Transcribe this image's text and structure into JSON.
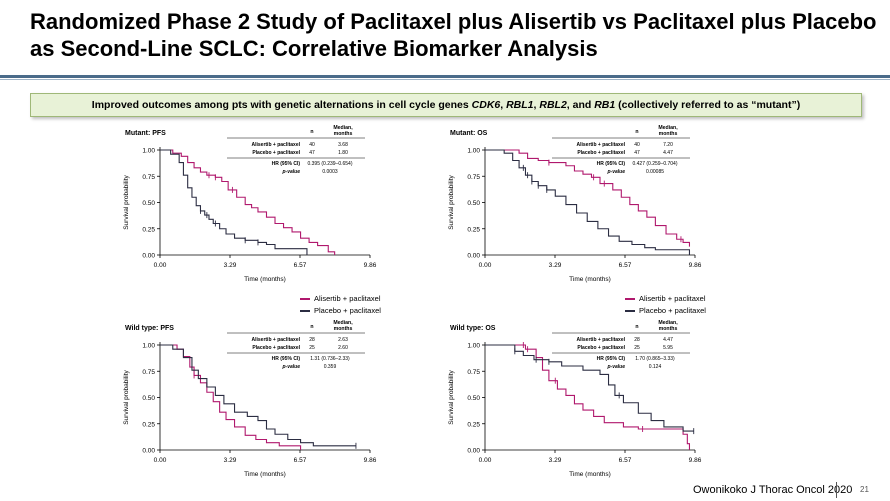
{
  "slide": {
    "title": "Randomized Phase 2 Study of Paclitaxel plus Alisertib vs Paclitaxel plus Placebo as Second-Line SCLC: Correlative Biomarker Analysis",
    "banner_parts": [
      "Improved  outcomes  among  pts  with  genetic  alternations  in  cell  cycle  genes ",
      "CDK6",
      ", ",
      "RBL1",
      ", ",
      "RBL2",
      ",  and ",
      "RB1",
      " (collectively  referred  to as “mutant”)"
    ],
    "citation": "Owonikoko J Thorac Oncol 2020",
    "page_number": "21",
    "colors": {
      "alisertib": "#b0186d",
      "placebo": "#2b2d42",
      "accent_rule": "#4a6b8a",
      "banner_bg": "#e8f2d7"
    }
  },
  "legends": [
    {
      "items": [
        {
          "label": "Alisertib + paclitaxel",
          "color": "#b0186d"
        },
        {
          "label": "Placebo + paclitaxel",
          "color": "#2b2d42"
        }
      ]
    },
    {
      "items": [
        {
          "label": "Alisertib + paclitaxel",
          "color": "#b0186d"
        },
        {
          "label": "Placebo + paclitaxel",
          "color": "#2b2d42"
        }
      ]
    }
  ],
  "chart_data": [
    {
      "type": "line",
      "title": "Mutant: PFS",
      "xlabel": "Time (months)",
      "ylabel": "Survival probability",
      "xlim": [
        0,
        9.86
      ],
      "ylim": [
        0,
        1.0
      ],
      "x_ticks": [
        "0.00",
        "3.29",
        "6.57",
        "9.86"
      ],
      "y_ticks": [
        "0.00",
        "0.25",
        "0.50",
        "0.75",
        "1.00"
      ],
      "table": {
        "headers": [
          "",
          "n",
          "Median, months"
        ],
        "rows": [
          [
            "Alisertib + paclitaxel",
            "40",
            "3.68"
          ],
          [
            "Placebo + paclitaxel",
            "47",
            "1.80"
          ]
        ],
        "stats": [
          [
            "HR (95% CI)",
            "0.395 (0.239–0.654)"
          ],
          [
            "p-value",
            "0.0003"
          ]
        ]
      },
      "series": [
        {
          "name": "Alisertib + paclitaxel",
          "color": "#b0186d",
          "x": [
            0,
            0.6,
            1.0,
            1.3,
            1.6,
            1.9,
            2.2,
            2.6,
            2.9,
            3.2,
            3.6,
            4.0,
            4.3,
            4.6,
            5.0,
            5.4,
            5.8,
            6.2,
            6.6,
            7.0,
            7.4,
            7.9,
            8.2
          ],
          "y": [
            1.0,
            0.97,
            0.94,
            0.88,
            0.83,
            0.79,
            0.76,
            0.74,
            0.7,
            0.62,
            0.55,
            0.48,
            0.45,
            0.41,
            0.36,
            0.3,
            0.26,
            0.22,
            0.16,
            0.12,
            0.09,
            0.03,
            0.0
          ],
          "censor_x": [
            2.3,
            2.6,
            3.4
          ]
        },
        {
          "name": "Placebo + paclitaxel",
          "color": "#2b2d42",
          "x": [
            0,
            0.5,
            0.9,
            1.1,
            1.3,
            1.5,
            1.7,
            1.9,
            2.1,
            2.3,
            2.5,
            2.8,
            3.1,
            3.5,
            4.0,
            4.6,
            5.0,
            5.4,
            6.6,
            6.9
          ],
          "y": [
            1.0,
            0.96,
            0.88,
            0.76,
            0.64,
            0.55,
            0.47,
            0.42,
            0.38,
            0.34,
            0.3,
            0.25,
            0.2,
            0.16,
            0.14,
            0.12,
            0.1,
            0.06,
            0.06,
            0.0
          ],
          "censor_x": [
            1.9,
            2.2,
            2.6,
            4.0,
            4.6
          ]
        }
      ]
    },
    {
      "type": "line",
      "title": "Mutant: OS",
      "xlabel": "Time (months)",
      "ylabel": "Survival probability",
      "xlim": [
        0,
        9.86
      ],
      "ylim": [
        0,
        1.0
      ],
      "x_ticks": [
        "0.00",
        "3.29",
        "6.57",
        "9.86"
      ],
      "y_ticks": [
        "0.00",
        "0.25",
        "0.50",
        "0.75",
        "1.00"
      ],
      "table": {
        "headers": [
          "",
          "n",
          "Median, months"
        ],
        "rows": [
          [
            "Alisertib + paclitaxel",
            "40",
            "7.20"
          ],
          [
            "Placebo + paclitaxel",
            "47",
            "4.47"
          ]
        ],
        "stats": [
          [
            "HR (95% CI)",
            "0.427 (0.259–0.704)"
          ],
          [
            "p-value",
            "0.00085"
          ]
        ]
      },
      "series": [
        {
          "name": "Alisertib + paclitaxel",
          "color": "#b0186d",
          "x": [
            0,
            1.6,
            2.0,
            2.5,
            3.0,
            3.8,
            4.2,
            4.6,
            5.0,
            5.4,
            6.0,
            6.4,
            6.8,
            7.2,
            7.6,
            8.0,
            8.5,
            9.0,
            9.3,
            9.6
          ],
          "y": [
            1.0,
            0.97,
            0.92,
            0.9,
            0.88,
            0.85,
            0.8,
            0.77,
            0.74,
            0.68,
            0.62,
            0.55,
            0.48,
            0.42,
            0.36,
            0.28,
            0.2,
            0.15,
            0.12,
            0.08
          ],
          "censor_x": [
            3.0,
            5.1,
            5.6,
            9.2
          ]
        },
        {
          "name": "Placebo + paclitaxel",
          "color": "#2b2d42",
          "x": [
            0,
            0.9,
            1.3,
            1.6,
            1.9,
            2.2,
            2.5,
            2.9,
            3.3,
            3.8,
            4.3,
            4.8,
            5.3,
            5.8,
            6.3,
            6.9,
            7.5,
            8.0,
            9.3,
            9.6
          ],
          "y": [
            1.0,
            0.97,
            0.9,
            0.83,
            0.76,
            0.7,
            0.66,
            0.62,
            0.56,
            0.48,
            0.4,
            0.32,
            0.25,
            0.18,
            0.13,
            0.1,
            0.07,
            0.05,
            0.05,
            0.0
          ],
          "censor_x": [
            1.8,
            2.0,
            2.2,
            2.5,
            2.9
          ]
        }
      ]
    },
    {
      "type": "line",
      "title": "Wild type: PFS",
      "xlabel": "Time (months)",
      "ylabel": "Survival probability",
      "xlim": [
        0,
        9.86
      ],
      "ylim": [
        0,
        1.0
      ],
      "x_ticks": [
        "0.00",
        "3.29",
        "6.57",
        "9.86"
      ],
      "y_ticks": [
        "0.00",
        "0.25",
        "0.50",
        "0.75",
        "1.00"
      ],
      "table": {
        "headers": [
          "",
          "n",
          "Median, months"
        ],
        "rows": [
          [
            "Alisertib + paclitaxel",
            "28",
            "2.63"
          ],
          [
            "Placebo + paclitaxel",
            "25",
            "2.60"
          ]
        ],
        "stats": [
          [
            "HR (95% CI)",
            "1.31 (0.736–2.33)"
          ],
          [
            "p-value",
            "0.359"
          ]
        ]
      },
      "series": [
        {
          "name": "Alisertib + paclitaxel",
          "color": "#b0186d",
          "x": [
            0,
            0.8,
            1.1,
            1.4,
            1.6,
            1.9,
            2.2,
            2.5,
            2.8,
            3.1,
            3.5,
            4.0,
            4.5,
            5.0,
            5.6,
            6.2,
            6.6
          ],
          "y": [
            1.0,
            0.96,
            0.89,
            0.79,
            0.71,
            0.64,
            0.55,
            0.46,
            0.36,
            0.29,
            0.22,
            0.14,
            0.1,
            0.07,
            0.04,
            0.04,
            0.0
          ],
          "censor_x": [
            1.6
          ]
        },
        {
          "name": "Placebo + paclitaxel",
          "color": "#2b2d42",
          "x": [
            0,
            0.6,
            1.1,
            1.5,
            1.8,
            2.2,
            2.6,
            3.0,
            3.5,
            4.1,
            4.6,
            5.0,
            5.4,
            6.0,
            6.6,
            7.2,
            9.2
          ],
          "y": [
            1.0,
            0.96,
            0.88,
            0.76,
            0.68,
            0.6,
            0.52,
            0.44,
            0.36,
            0.32,
            0.28,
            0.2,
            0.15,
            0.1,
            0.07,
            0.04,
            0.04
          ],
          "censor_x": [
            9.2
          ]
        }
      ]
    },
    {
      "type": "line",
      "title": "Wild type: OS",
      "xlabel": "Time (months)",
      "ylabel": "Survival probability",
      "xlim": [
        0,
        9.86
      ],
      "ylim": [
        0,
        1.0
      ],
      "x_ticks": [
        "0.00",
        "3.29",
        "6.57",
        "9.86"
      ],
      "y_ticks": [
        "0.00",
        "0.25",
        "0.50",
        "0.75",
        "1.00"
      ],
      "table": {
        "headers": [
          "",
          "n",
          "Median, months"
        ],
        "rows": [
          [
            "Alisertib + paclitaxel",
            "28",
            "4.47"
          ],
          [
            "Placebo + paclitaxel",
            "25",
            "5.95"
          ]
        ],
        "stats": [
          [
            "HR (95% CI)",
            "1.70 (0.865–3.33)"
          ],
          [
            "p-value",
            "0.124"
          ]
        ]
      },
      "series": [
        {
          "name": "Alisertib + paclitaxel",
          "color": "#b0186d",
          "x": [
            0,
            1.9,
            2.4,
            2.7,
            3.0,
            3.4,
            3.8,
            4.2,
            4.6,
            5.1,
            5.6,
            6.5,
            7.2,
            8.0,
            9.3,
            9.5,
            9.6
          ],
          "y": [
            1.0,
            0.96,
            0.88,
            0.76,
            0.66,
            0.58,
            0.52,
            0.44,
            0.38,
            0.32,
            0.26,
            0.22,
            0.2,
            0.2,
            0.15,
            0.06,
            0.0
          ],
          "censor_x": [
            1.8,
            2.0,
            3.3,
            7.4
          ]
        },
        {
          "name": "Placebo + paclitaxel",
          "color": "#2b2d42",
          "x": [
            0,
            1.4,
            1.8,
            2.3,
            3.0,
            3.6,
            4.6,
            5.4,
            5.8,
            6.1,
            6.5,
            7.2,
            7.8,
            8.4,
            9.3,
            9.8
          ],
          "y": [
            1.0,
            0.94,
            0.9,
            0.86,
            0.84,
            0.8,
            0.76,
            0.72,
            0.62,
            0.52,
            0.45,
            0.35,
            0.28,
            0.22,
            0.18,
            0.18
          ],
          "censor_x": [
            1.4,
            2.4,
            3.0,
            6.3,
            9.8
          ]
        }
      ]
    }
  ]
}
